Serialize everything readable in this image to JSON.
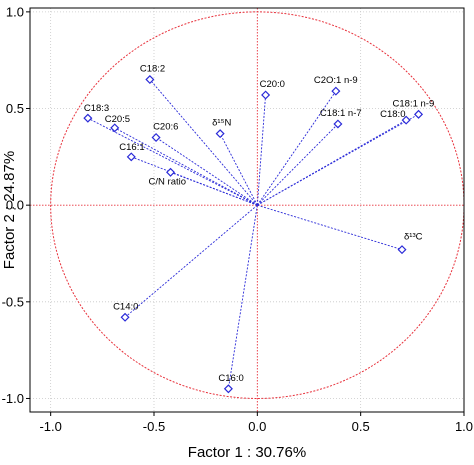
{
  "chart_data": {
    "type": "scatter",
    "xlabel": "Factor 1 : 30.76%",
    "ylabel": "Factor 2 : 24.87%",
    "xlim": [
      -1.1,
      1.0
    ],
    "ylim": [
      -1.07,
      1.02
    ],
    "x_ticks": [
      -1.0,
      -0.5,
      0.0,
      0.5,
      1.0
    ],
    "y_ticks": [
      -1.0,
      -0.5,
      0.0,
      0.5,
      1.0
    ],
    "x_tick_labels": [
      "-1.0",
      "-0.5",
      "0.0",
      "0.5",
      "1.0"
    ],
    "y_tick_labels": [
      "-1.0",
      "-0.5",
      "0.0",
      "0.5",
      "1.0"
    ],
    "grid": true,
    "unit_circle": true,
    "points": [
      {
        "label": "C18:2",
        "x": -0.52,
        "y": 0.65
      },
      {
        "label": "C20:0",
        "x": 0.04,
        "y": 0.57
      },
      {
        "label": "C2O:1 n-9",
        "x": 0.38,
        "y": 0.59
      },
      {
        "label": "C18:1 n-9",
        "x": 0.78,
        "y": 0.47
      },
      {
        "label": "C18:0",
        "x": 0.72,
        "y": 0.44
      },
      {
        "label": "C18:1 n-7",
        "x": 0.39,
        "y": 0.42
      },
      {
        "label": "C18:3",
        "x": -0.82,
        "y": 0.45
      },
      {
        "label": "C20:5",
        "x": -0.69,
        "y": 0.4
      },
      {
        "label": "C20:6",
        "x": -0.49,
        "y": 0.35
      },
      {
        "label": "δ¹⁵N",
        "x": -0.18,
        "y": 0.37
      },
      {
        "label": "C16:1",
        "x": -0.61,
        "y": 0.25
      },
      {
        "label": "C/N ratio",
        "x": -0.42,
        "y": 0.17
      },
      {
        "label": "δ¹³C",
        "x": 0.7,
        "y": -0.23
      },
      {
        "label": "C14:0",
        "x": -0.64,
        "y": -0.58
      },
      {
        "label": "C16:0",
        "x": -0.14,
        "y": -0.95
      }
    ],
    "colors": {
      "vector": "#2a2ad8",
      "marker": "#2a2ad8",
      "circle": "#e8323c",
      "zero_line": "#e8323c",
      "grid": "#c8c8c8"
    }
  }
}
